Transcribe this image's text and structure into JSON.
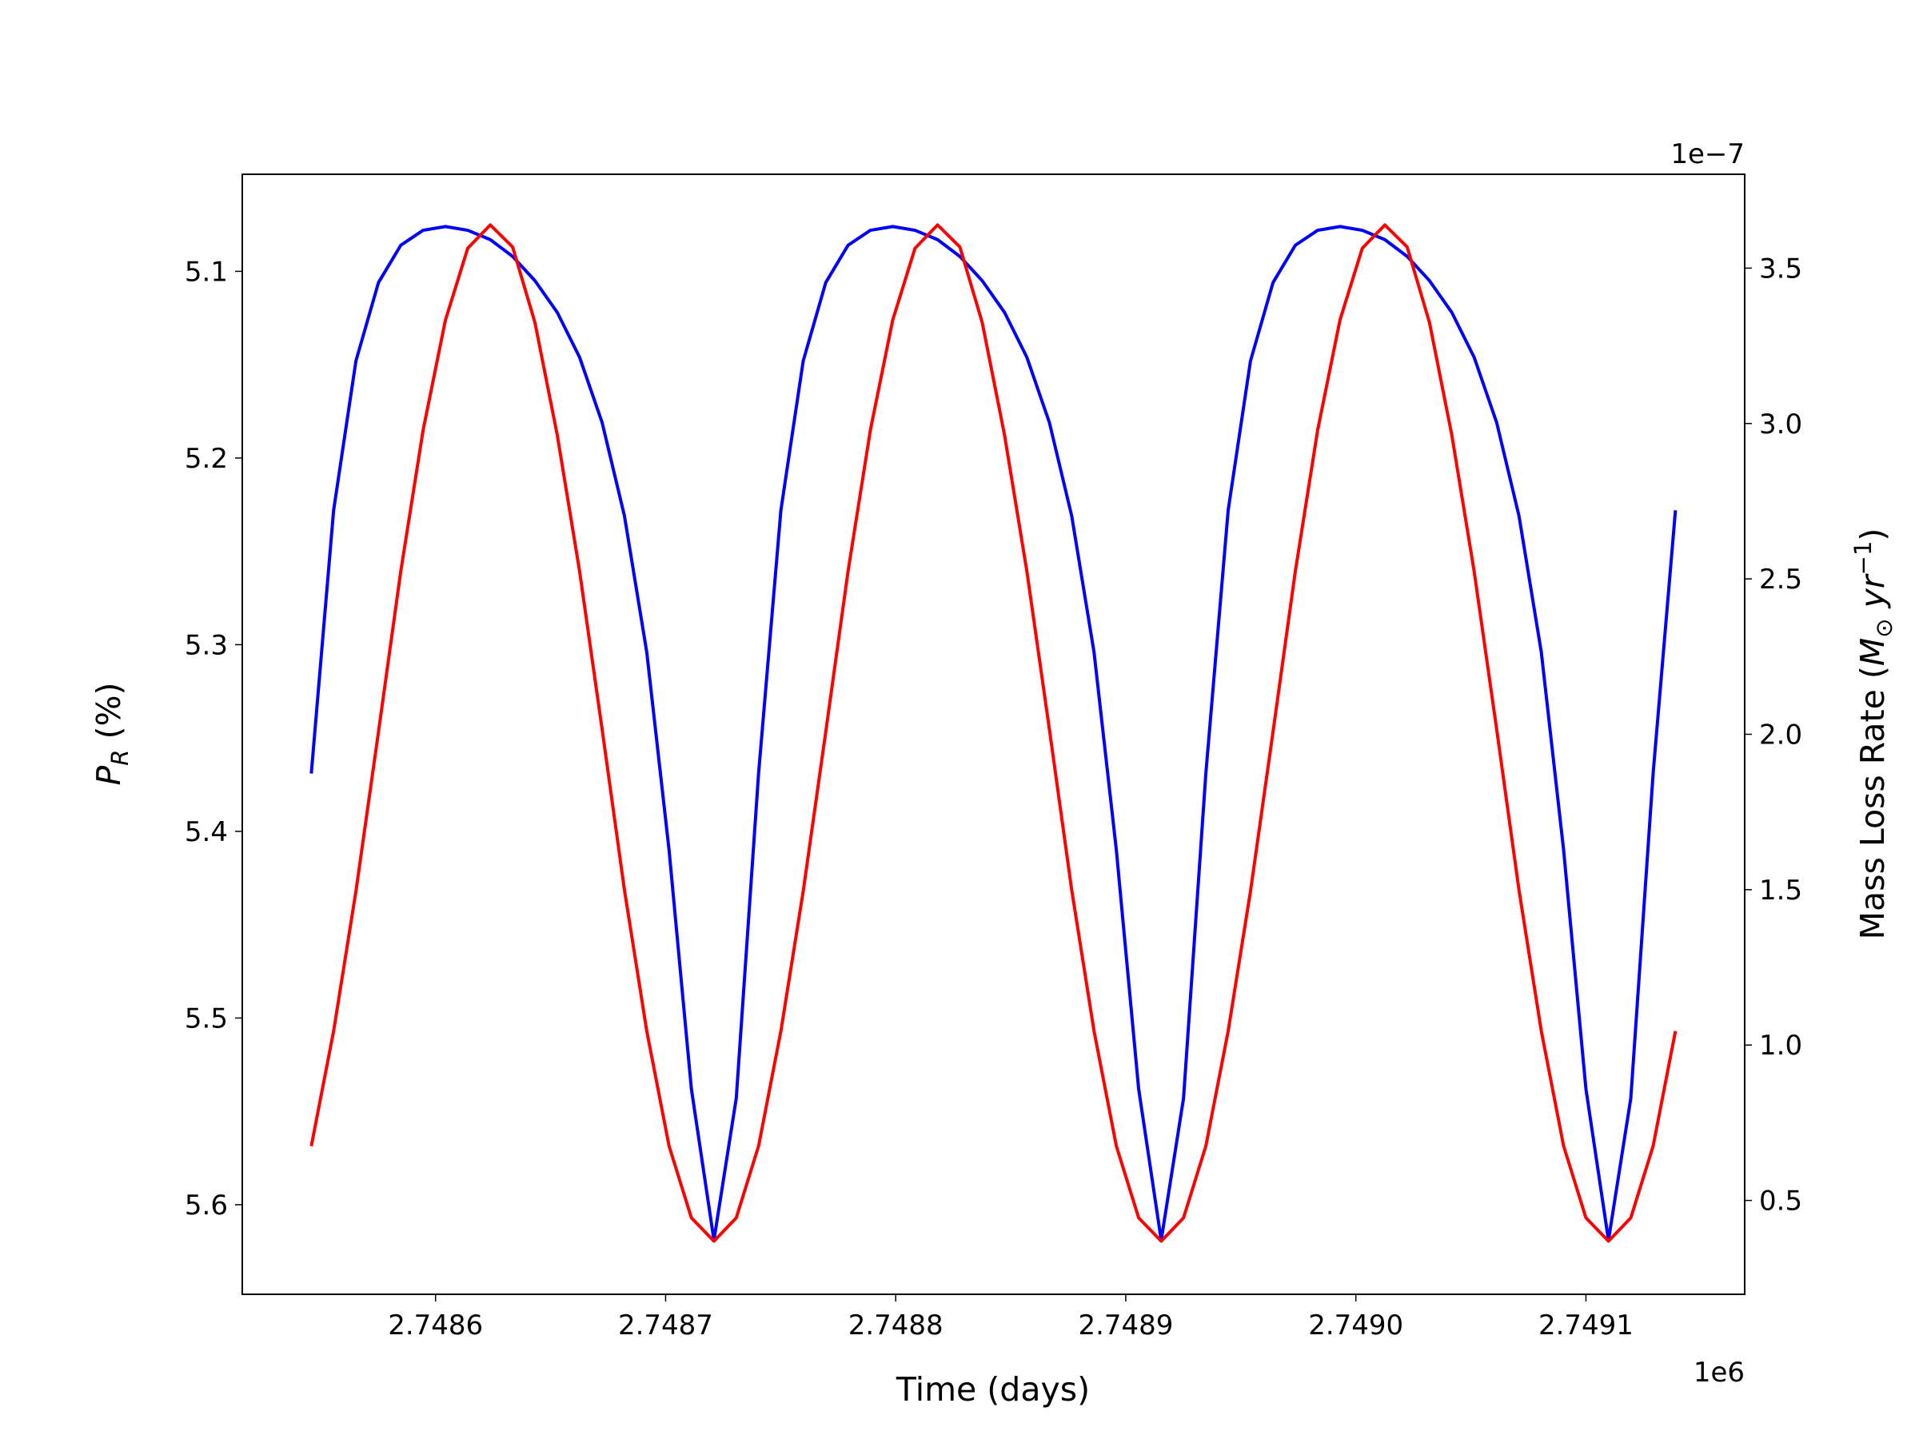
{
  "chart_data": {
    "type": "line",
    "xlabel": "Time (days)",
    "ylabel": [
      "P",
      "R",
      " (%)"
    ],
    "y2label": [
      "Mass Loss Rate (",
      "M",
      "⊙",
      " yr",
      "−1",
      ")"
    ],
    "x_offset_label": "1e6",
    "y2_offset_label": "1e−7",
    "x": [
      2748546.0,
      2748555.7,
      2748565.4,
      2748575.2,
      2748584.9,
      2748594.6,
      2748604.3,
      2748614.0,
      2748623.8,
      2748633.5,
      2748643.2,
      2748652.9,
      2748662.6,
      2748672.4,
      2748682.1,
      2748691.8,
      2748701.5,
      2748711.2,
      2748721.0,
      2748730.7,
      2748740.4,
      2748750.1,
      2748759.8,
      2748769.6,
      2748779.3,
      2748789.0,
      2748798.7,
      2748808.4,
      2748818.2,
      2748827.9,
      2748837.6,
      2748847.3,
      2748857.0,
      2748866.8,
      2748876.5,
      2748886.2,
      2748895.9,
      2748905.6,
      2748915.4,
      2748925.1,
      2748934.8,
      2748944.5,
      2748954.2,
      2748964.0,
      2748973.7,
      2748983.4,
      2748993.1,
      2749002.8,
      2749012.6,
      2749022.3,
      2749032.0,
      2749041.7,
      2749051.4,
      2749061.2,
      2749070.9,
      2749080.6,
      2749090.3,
      2749100.0,
      2749109.8,
      2749119.5,
      2749129.2,
      2749138.9
    ],
    "series": [
      {
        "color": "#0000ff",
        "axis": "y",
        "values": [
          5.369,
          5.228,
          5.148,
          5.106,
          5.086,
          5.078,
          5.076,
          5.078,
          5.083,
          5.092,
          5.105,
          5.122,
          5.146,
          5.181,
          5.231,
          5.304,
          5.41,
          5.538,
          5.619,
          5.543,
          5.369,
          5.228,
          5.148,
          5.106,
          5.086,
          5.078,
          5.076,
          5.078,
          5.083,
          5.092,
          5.105,
          5.122,
          5.146,
          5.181,
          5.231,
          5.304,
          5.41,
          5.538,
          5.619,
          5.543,
          5.369,
          5.228,
          5.148,
          5.106,
          5.086,
          5.078,
          5.076,
          5.078,
          5.083,
          5.092,
          5.105,
          5.122,
          5.146,
          5.181,
          5.231,
          5.304,
          5.41,
          5.538,
          5.619,
          5.543,
          5.369,
          5.228
        ]
      },
      {
        "color": "#ff0000",
        "axis": "y2",
        "values": [
          0.675,
          1.045,
          1.495,
          2.008,
          2.525,
          2.979,
          3.333,
          3.564,
          3.639,
          3.568,
          3.325,
          2.963,
          2.525,
          2.016,
          1.499,
          1.045,
          0.675,
          0.444,
          0.369,
          0.444,
          0.675,
          1.045,
          1.495,
          2.008,
          2.525,
          2.979,
          3.333,
          3.564,
          3.639,
          3.568,
          3.325,
          2.963,
          2.525,
          2.016,
          1.499,
          1.045,
          0.675,
          0.444,
          0.369,
          0.444,
          0.675,
          1.045,
          1.495,
          2.008,
          2.525,
          2.979,
          3.333,
          3.564,
          3.639,
          3.568,
          3.325,
          2.963,
          2.525,
          2.016,
          1.499,
          1.045,
          0.675,
          0.444,
          0.369,
          0.444,
          0.675,
          1.045
        ]
      }
    ],
    "xlim": [
      2748516,
      2749169
    ],
    "xticks": [
      {
        "value": 2748600,
        "label": "2.7486"
      },
      {
        "value": 2748700,
        "label": "2.7487"
      },
      {
        "value": 2748800,
        "label": "2.7488"
      },
      {
        "value": 2748900,
        "label": "2.7489"
      },
      {
        "value": 2749000,
        "label": "2.7490"
      },
      {
        "value": 2749100,
        "label": "2.7491"
      }
    ],
    "ylim": [
      5.648,
      5.048
    ],
    "yticks": [
      5.1,
      5.2,
      5.3,
      5.4,
      5.5,
      5.6
    ],
    "y2lim": [
      0.198,
      3.802
    ],
    "y2ticks": [
      0.5,
      {
        "value": 1.0,
        "label": "1.0"
      },
      1.5,
      {
        "value": 2.0,
        "label": "2.0"
      },
      2.5,
      {
        "value": 3.0,
        "label": "3.0"
      },
      3.5
    ],
    "grid": false
  }
}
